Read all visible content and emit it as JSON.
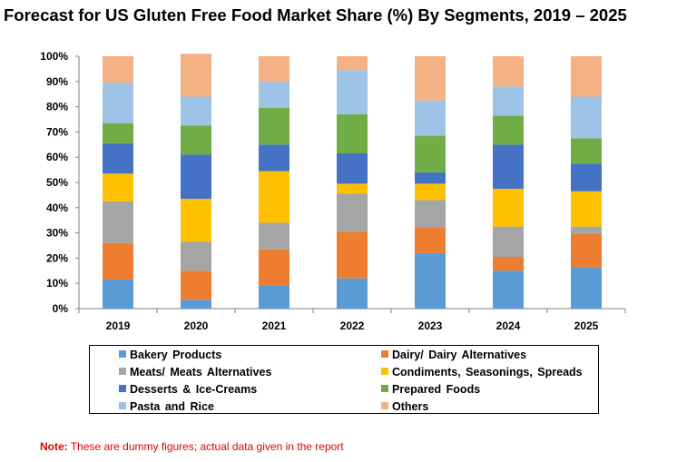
{
  "chart_data": {
    "type": "bar",
    "stacked": true,
    "title": "Forecast for US Gluten Free Food Market Share (%) By Segments, 2019 – 2025",
    "categories": [
      "2019",
      "2020",
      "2021",
      "2022",
      "2023",
      "2024",
      "2025"
    ],
    "y_ticks": [
      "0%",
      "10%",
      "20%",
      "30%",
      "40%",
      "50%",
      "60%",
      "70%",
      "80%",
      "90%",
      "100%"
    ],
    "ylim": [
      0,
      100
    ],
    "grid": false,
    "legend_position": "bottom",
    "series": [
      {
        "name": "Bakery Products",
        "color": "#5b9bd5",
        "values": [
          11.5,
          3.5,
          9,
          12,
          22,
          15,
          16.5
        ]
      },
      {
        "name": "Dairy/ Dairy Alternatives",
        "color": "#ed7d31",
        "values": [
          14.5,
          11.5,
          14.5,
          18.5,
          10,
          5.5,
          13
        ]
      },
      {
        "name": "Meats/ Meats Alternatives",
        "color": "#a5a5a5",
        "values": [
          16.5,
          11.5,
          10.5,
          15,
          11,
          12,
          3
        ]
      },
      {
        "name": "Condiments, Seasonings, Spreads",
        "color": "#ffc000",
        "values": [
          11,
          17,
          20.5,
          4,
          6.5,
          15,
          14
        ]
      },
      {
        "name": "Desserts & Ice-Creams",
        "color": "#4472c4",
        "values": [
          12,
          17.5,
          10.5,
          12,
          4.5,
          17.5,
          11
        ]
      },
      {
        "name": "Prepared Foods",
        "color": "#70ad47",
        "values": [
          8,
          11.5,
          14.5,
          15.5,
          14.5,
          11.5,
          10
        ]
      },
      {
        "name": "Pasta and Rice",
        "color": "#9dc3e6",
        "values": [
          16,
          11.5,
          10.5,
          17.5,
          14,
          11.5,
          16.5
        ]
      },
      {
        "name": "Others",
        "color": "#f4b183",
        "values": [
          10.5,
          17,
          10,
          5.5,
          17.5,
          12,
          16
        ]
      }
    ]
  },
  "note": {
    "label": "Note:",
    "text": " These are dummy figures; actual data given in the report"
  }
}
